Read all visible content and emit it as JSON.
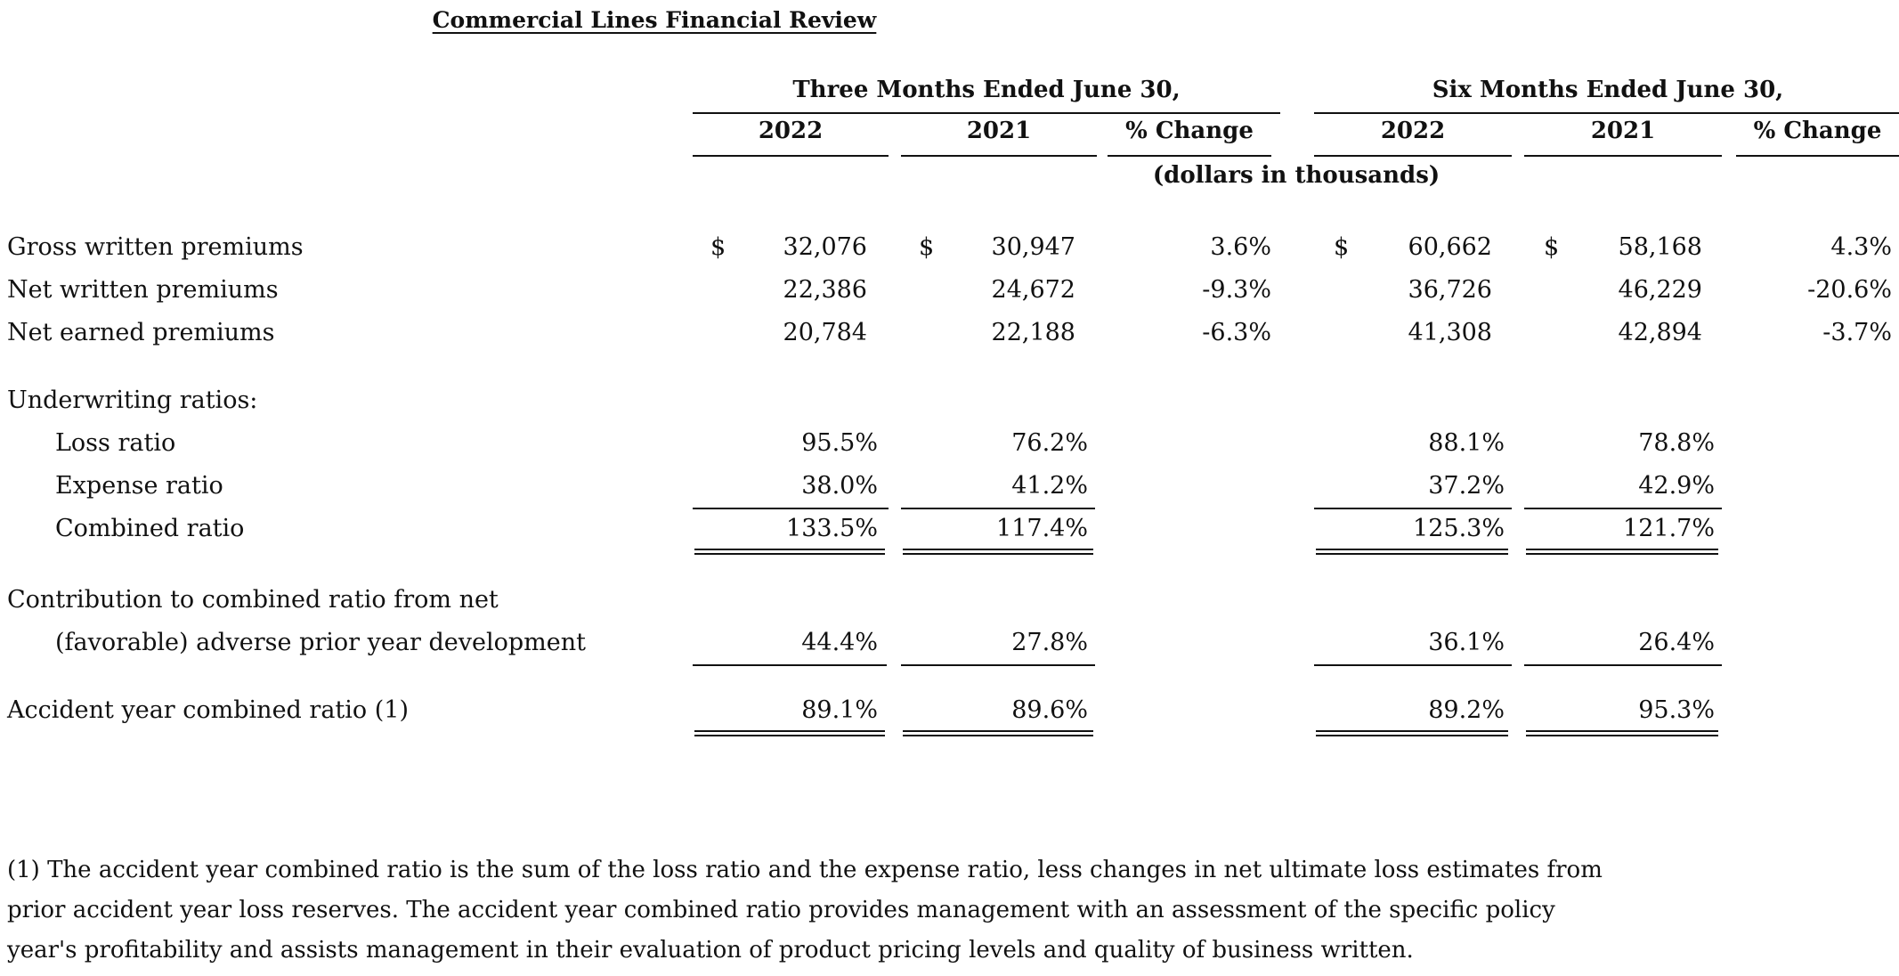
{
  "title": "Commercial Lines Financial Review",
  "periods": {
    "three_months": "Three Months Ended June 30,",
    "six_months": "Six Months Ended June 30,"
  },
  "columns": {
    "y2022": "2022",
    "y2021": "2021",
    "pct": "% Change"
  },
  "units": "(dollars in thousands)",
  "currency_symbol": "$",
  "rows": {
    "gross": {
      "label": "Gross written premiums",
      "q_2022": "32,076",
      "q_2021": "30,947",
      "q_pct": "3.6%",
      "h_2022": "60,662",
      "h_2021": "58,168",
      "h_pct": "4.3%"
    },
    "net_written": {
      "label": "Net written premiums",
      "q_2022": "22,386",
      "q_2021": "24,672",
      "q_pct": "-9.3%",
      "h_2022": "36,726",
      "h_2021": "46,229",
      "h_pct": "-20.6%"
    },
    "net_earned": {
      "label": "Net earned premiums",
      "q_2022": "20,784",
      "q_2021": "22,188",
      "q_pct": "-6.3%",
      "h_2022": "41,308",
      "h_2021": "42,894",
      "h_pct": "-3.7%"
    },
    "uw_header": {
      "label": "Underwriting ratios:"
    },
    "loss": {
      "label": "Loss ratio",
      "q_2022": "95.5%",
      "q_2021": "76.2%",
      "h_2022": "88.1%",
      "h_2021": "78.8%"
    },
    "expense": {
      "label": "Expense ratio",
      "q_2022": "38.0%",
      "q_2021": "41.2%",
      "h_2022": "37.2%",
      "h_2021": "42.9%"
    },
    "combined": {
      "label": "Combined ratio",
      "q_2022": "133.5%",
      "q_2021": "117.4%",
      "h_2022": "125.3%",
      "h_2021": "121.7%"
    },
    "contribution": {
      "label_line1": "Contribution to combined ratio from net",
      "label_line2": "(favorable) adverse prior year development",
      "q_2022": "44.4%",
      "q_2021": "27.8%",
      "h_2022": "36.1%",
      "h_2021": "26.4%"
    },
    "accident": {
      "label": "Accident year combined ratio (1)",
      "q_2022": "89.1%",
      "q_2021": "89.6%",
      "h_2022": "89.2%",
      "h_2021": "95.3%"
    }
  },
  "footnote": {
    "line1": "(1) The accident year combined ratio is the sum of the loss ratio and the expense ratio, less changes in net ultimate loss estimates from",
    "line2": "prior accident year loss reserves. The accident year combined ratio provides management with an assessment of the specific policy",
    "line3": "year's profitability and assists management in their evaluation of product pricing levels and quality of business written."
  }
}
